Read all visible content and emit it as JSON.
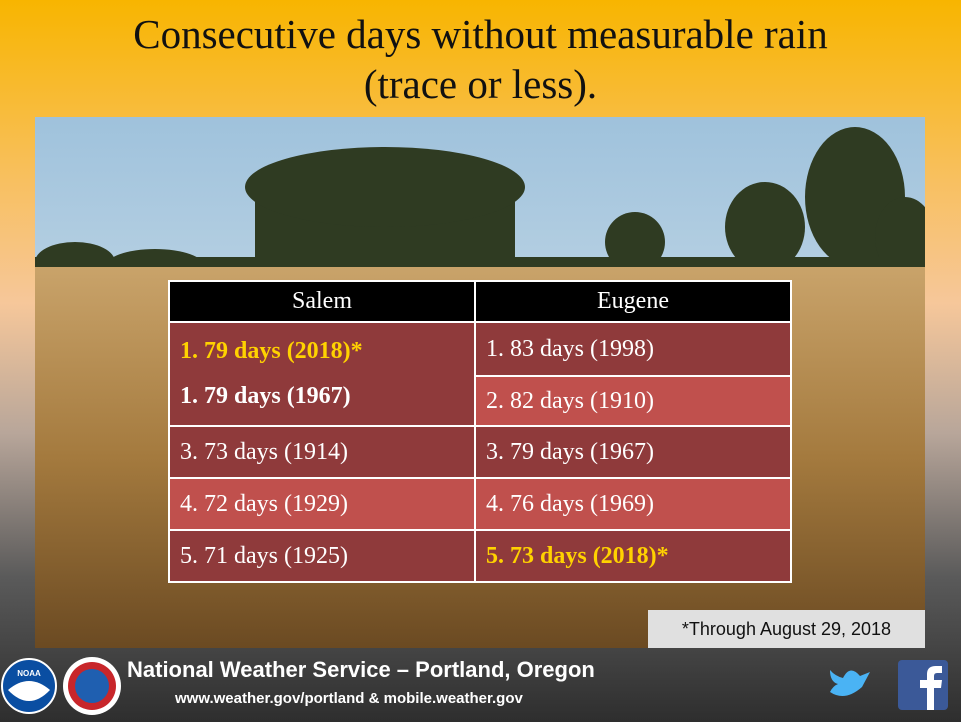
{
  "header": {
    "title_lines": [
      "Consecutive days without measurable rain",
      "(trace or less)."
    ]
  },
  "table": {
    "headers": [
      "Salem",
      "Eugene"
    ],
    "salem": [
      "1. 79 days (2018)*",
      "1. 79 days (1967)",
      "3. 73 days (1914)",
      "4. 72 days (1929)",
      "5. 71 days (1925)"
    ],
    "eugene": [
      "1. 83 days (1998)",
      "2. 82 days (1910)",
      "3. 79 days (1967)",
      "4. 76 days (1969)",
      "5. 73 days (2018)*"
    ]
  },
  "footnote": "*Through August 29, 2018",
  "footer": {
    "org": "National Weather Service – Portland, Oregon",
    "url": "www.weather.gov/portland & mobile.weather.gov",
    "noaa": "NOAA"
  }
}
